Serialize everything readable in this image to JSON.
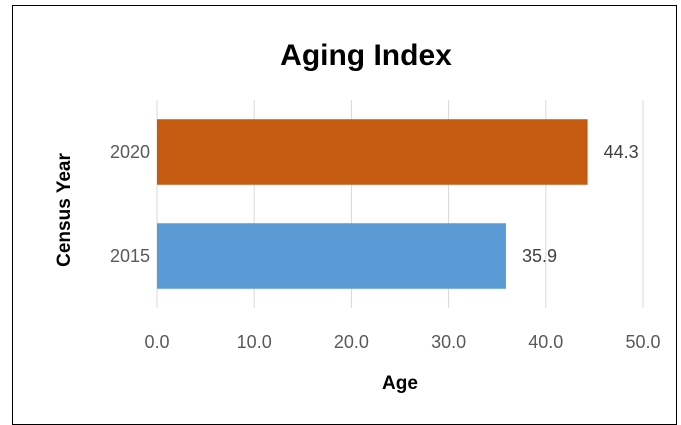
{
  "chart_data": {
    "type": "bar",
    "orientation": "horizontal",
    "title": "Aging Index",
    "xlabel": "Age",
    "ylabel": "Census Year",
    "categories": [
      "2020",
      "2015"
    ],
    "values": [
      44.3,
      35.9
    ],
    "data_labels": [
      "44.3",
      "35.9"
    ],
    "bar_colors": [
      "#c55a11",
      "#5b9bd5"
    ],
    "xlim": [
      0,
      50
    ],
    "xticks": [
      "0.0",
      "10.0",
      "20.0",
      "30.0",
      "40.0",
      "50.0"
    ],
    "grid": true,
    "legend": "none"
  }
}
